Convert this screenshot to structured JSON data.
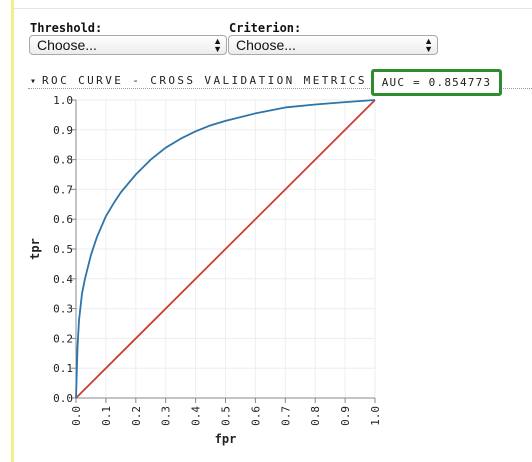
{
  "controls": {
    "threshold": {
      "label": "Threshold:",
      "value": "Choose..."
    },
    "criterion": {
      "label": "Criterion:",
      "value": "Choose..."
    }
  },
  "section": {
    "title": "ROC CURVE - CROSS VALIDATION METRICS",
    "collapse_glyph": "▾",
    "auc_text": "AUC = 0.854773",
    "highlight_color": "#2e8b2e"
  },
  "chart_data": {
    "type": "line",
    "xlabel": "fpr",
    "ylabel": "tpr",
    "xlim": [
      0,
      1
    ],
    "ylim": [
      0,
      1
    ],
    "grid": true,
    "x_ticks": [
      "0.0",
      "0.1",
      "0.2",
      "0.3",
      "0.4",
      "0.5",
      "0.6",
      "0.7",
      "0.8",
      "0.9",
      "1.0"
    ],
    "y_ticks": [
      "0.0",
      "0.1",
      "0.2",
      "0.3",
      "0.4",
      "0.5",
      "0.6",
      "0.7",
      "0.8",
      "0.9",
      "1.0"
    ],
    "series": [
      {
        "color": "#2c74a9",
        "x": [
          0,
          0.005,
          0.01,
          0.02,
          0.03,
          0.05,
          0.07,
          0.1,
          0.13,
          0.15,
          0.2,
          0.25,
          0.3,
          0.35,
          0.4,
          0.45,
          0.5,
          0.6,
          0.7,
          0.8,
          0.9,
          1.0
        ],
        "y": [
          0,
          0.17,
          0.26,
          0.35,
          0.4,
          0.48,
          0.54,
          0.61,
          0.66,
          0.69,
          0.75,
          0.8,
          0.84,
          0.87,
          0.895,
          0.915,
          0.93,
          0.955,
          0.975,
          0.985,
          0.993,
          1.0
        ]
      },
      {
        "color": "#d23c30",
        "x": [
          0,
          1
        ],
        "y": [
          0,
          1
        ]
      }
    ]
  }
}
